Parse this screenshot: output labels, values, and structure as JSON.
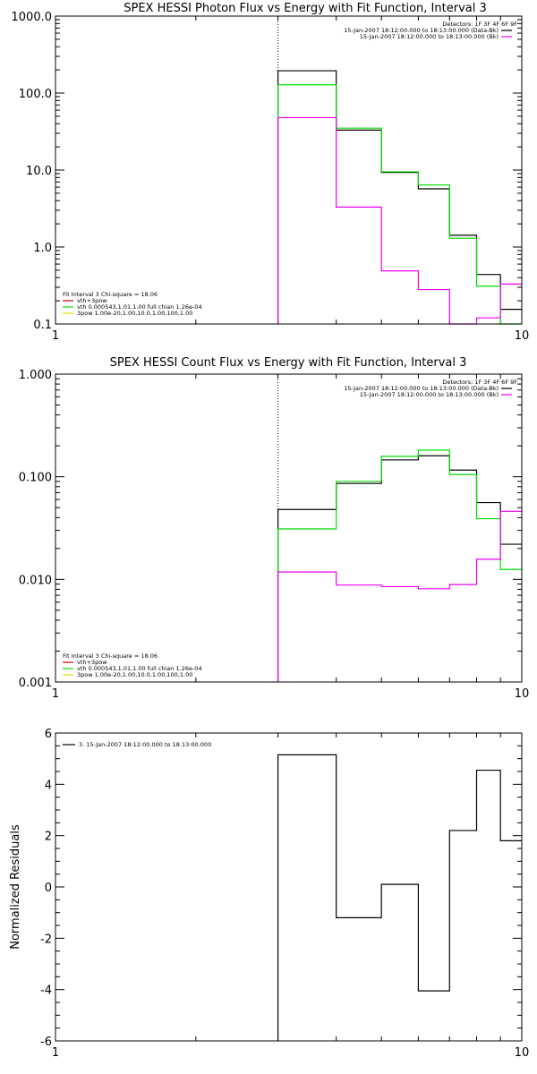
{
  "chart_data": [
    {
      "id": "photon",
      "type": "line",
      "title": "SPEX HESSI Photon Flux vs Energy with Fit Function, Interval 3",
      "xlabel": "",
      "ylabel": "",
      "xscale": "log",
      "yscale": "log",
      "xlim": [
        1,
        10
      ],
      "ylim": [
        0.1,
        1000
      ],
      "xticks": [
        {
          "value": 1,
          "label": "1"
        },
        {
          "value": 10,
          "label": "10"
        }
      ],
      "yticks": [
        {
          "value": 0.1,
          "label": "0.1"
        },
        {
          "value": 1,
          "label": "1.0"
        },
        {
          "value": 10,
          "label": "10.0"
        },
        {
          "value": 100,
          "label": "100.0"
        },
        {
          "value": 1000,
          "label": "1000.0"
        }
      ],
      "vline": 3,
      "bin_edges": [
        3,
        4,
        5,
        6,
        7,
        8,
        9,
        10
      ],
      "series": [
        {
          "color": "#000000",
          "values": [
            195,
            33,
            9.3,
            5.7,
            1.42,
            0.44,
            0.155
          ]
        },
        {
          "color": "#00dd00",
          "values": [
            128,
            35,
            9.5,
            6.4,
            1.3,
            0.31,
            0.05
          ]
        },
        {
          "color": "#ee00ee",
          "values": [
            48,
            3.3,
            0.49,
            0.28,
            0.1,
            0.12,
            0.33
          ]
        }
      ],
      "detectors_text": "Detectors: 1F 3F 4F 6F 9F",
      "time_legend": [
        {
          "text": "15-Jan-2007 18:12:00.000 to 18:13:00.000 (Data-Bk)",
          "color": "#000000"
        },
        {
          "text": "15-Jan-2007 18:12:00.000 to 18:13:00.000 (Bk)",
          "color": "#ee00ee"
        }
      ],
      "fit_legend": [
        {
          "text": "Fit Interval 3    Chi-square = 18.06",
          "color": ""
        },
        {
          "text": "vth+3pow",
          "color": "#cc0000"
        },
        {
          "text": "vth 0.000543,1.01,1.00  full chian 1.26e-04",
          "color": "#00dd00"
        },
        {
          "text": "3pow 1.00e-20,1.00,10.0,1.00,100,1.00",
          "color": "#dddd00"
        }
      ]
    },
    {
      "id": "count",
      "type": "line",
      "title": "SPEX HESSI Count Flux vs Energy with Fit Function, Interval 3",
      "xlabel": "",
      "ylabel": "",
      "xscale": "log",
      "yscale": "log",
      "xlim": [
        1,
        10
      ],
      "ylim": [
        0.001,
        1
      ],
      "xticks": [
        {
          "value": 1,
          "label": "1"
        },
        {
          "value": 10,
          "label": "10"
        }
      ],
      "yticks": [
        {
          "value": 0.001,
          "label": "0.001"
        },
        {
          "value": 0.01,
          "label": "0.010"
        },
        {
          "value": 0.1,
          "label": "0.100"
        },
        {
          "value": 1,
          "label": "1.000"
        }
      ],
      "vline": 3,
      "bin_edges": [
        3,
        4,
        5,
        6,
        7,
        8,
        9,
        10
      ],
      "series": [
        {
          "color": "#000000",
          "values": [
            0.048,
            0.086,
            0.146,
            0.16,
            0.116,
            0.056,
            0.022
          ]
        },
        {
          "color": "#00dd00",
          "values": [
            0.031,
            0.09,
            0.158,
            0.182,
            0.105,
            0.039,
            0.0125
          ]
        },
        {
          "color": "#ee00ee",
          "values": [
            0.0118,
            0.0088,
            0.0085,
            0.0081,
            0.0089,
            0.0157,
            0.046
          ]
        }
      ],
      "detectors_text": "Detectors: 1F 3F 4F 6F 9F",
      "time_legend": [
        {
          "text": "15-Jan-2007 18:12:00.000 to 18:13:00.000 (Data-Bk)",
          "color": "#000000"
        },
        {
          "text": "15-Jan-2007 18:12:00.000 to 18:13:00.000 (Bk)",
          "color": "#ee00ee"
        }
      ],
      "fit_legend": [
        {
          "text": "Fit Interval 3    Chi-square = 18.06",
          "color": ""
        },
        {
          "text": "vth+3pow",
          "color": "#cc0000"
        },
        {
          "text": "vth 0.000543,1.01,1.00  full chian 1.26e-04",
          "color": "#00dd00"
        },
        {
          "text": "3pow 1.00e-20,1.00,10.0,1.00,100,1.00",
          "color": "#dddd00"
        }
      ]
    },
    {
      "id": "residuals",
      "type": "line",
      "title": "",
      "xlabel": "",
      "ylabel": "Normalized Residuals",
      "xscale": "log",
      "yscale": "linear",
      "xlim": [
        1,
        10
      ],
      "ylim": [
        -6,
        6
      ],
      "xticks": [
        {
          "value": 1,
          "label": "1"
        },
        {
          "value": 10,
          "label": "10"
        }
      ],
      "yticks": [
        {
          "value": -6,
          "label": "-6"
        },
        {
          "value": -4,
          "label": "-4"
        },
        {
          "value": -2,
          "label": "-2"
        },
        {
          "value": 0,
          "label": "0"
        },
        {
          "value": 2,
          "label": "2"
        },
        {
          "value": 4,
          "label": "4"
        },
        {
          "value": 6,
          "label": "6"
        }
      ],
      "bin_edges": [
        3,
        4,
        5,
        6,
        7,
        8,
        9,
        10
      ],
      "series": [
        {
          "color": "#000000",
          "values": [
            5.15,
            -1.2,
            0.1,
            -4.05,
            2.2,
            4.55,
            1.8
          ]
        }
      ],
      "legend": [
        {
          "text": "3. 15-Jan-2007 18:12:00.000 to 18:13:00.000",
          "color": "#000000"
        }
      ]
    }
  ]
}
